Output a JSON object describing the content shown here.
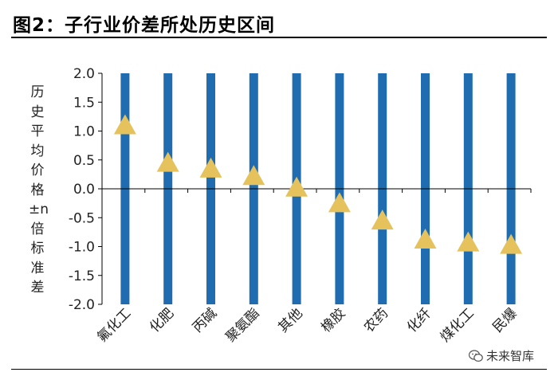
{
  "figure": {
    "title": "图2：子行业价差所处历史区间"
  },
  "watermark": {
    "text": "未来智库",
    "icon": "wechat-icon"
  },
  "colors": {
    "bar": "#1f6db0",
    "marker": "#e6c25c",
    "axis": "#000000",
    "text": "#222222"
  },
  "chart_data": {
    "type": "bar",
    "title": "",
    "xlabel": "",
    "ylabel": "历史平均价格±n倍标准差",
    "ylim": [
      -2.0,
      2.0
    ],
    "yticks": [
      "2.0",
      "1.5",
      "1.0",
      "0.5",
      "0.0",
      "-0.5",
      "-1.0",
      "-1.5",
      "-2.0"
    ],
    "grid": false,
    "categories": [
      "氟化工",
      "化肥",
      "丙碱",
      "聚氨酯",
      "其他",
      "橡胶",
      "农药",
      "化纤",
      "煤化工",
      "民爆"
    ],
    "range": {
      "min": [
        -2.0,
        -2.0,
        -2.0,
        -2.0,
        -2.0,
        -2.0,
        -2.0,
        -2.0,
        -2.0,
        -2.0
      ],
      "max": [
        2.0,
        2.0,
        2.0,
        2.0,
        2.0,
        2.0,
        2.0,
        2.0,
        2.0,
        2.0
      ]
    },
    "series": [
      {
        "values": [
          1.1,
          0.45,
          0.35,
          0.22,
          0.02,
          -0.25,
          -0.55,
          -0.88,
          -0.93,
          -0.97
        ]
      }
    ]
  }
}
